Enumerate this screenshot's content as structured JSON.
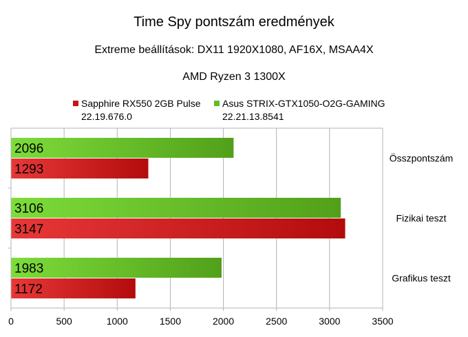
{
  "chart_data": {
    "type": "bar",
    "orientation": "horizontal",
    "title": "Time Spy pontszám eredmények",
    "subtitles": [
      "Extreme beállítások: DX11 1920X1080, AF16X, MSAA4X",
      "AMD Ryzen 3 1300X"
    ],
    "categories": [
      "Összpontszám",
      "Fizikai teszt",
      "Grafikus teszt"
    ],
    "series": [
      {
        "name": "Sapphire RX550 2GB Pulse",
        "name2": "22.19.676.0",
        "color": "#cc1111",
        "values": [
          1293,
          3147,
          1172
        ]
      },
      {
        "name": "Asus STRIX-GTX1050-O2G-GAMING",
        "name2": "22.21.13.8541",
        "color": "#66bb22",
        "values": [
          2096,
          3106,
          1983
        ]
      }
    ],
    "xlim": [
      0,
      3500
    ],
    "xticks": [
      "0",
      "500",
      "1000",
      "1500",
      "2000",
      "2500",
      "3000",
      "3500"
    ],
    "grid": true,
    "legend": "top",
    "data_labels": "inside-left"
  }
}
